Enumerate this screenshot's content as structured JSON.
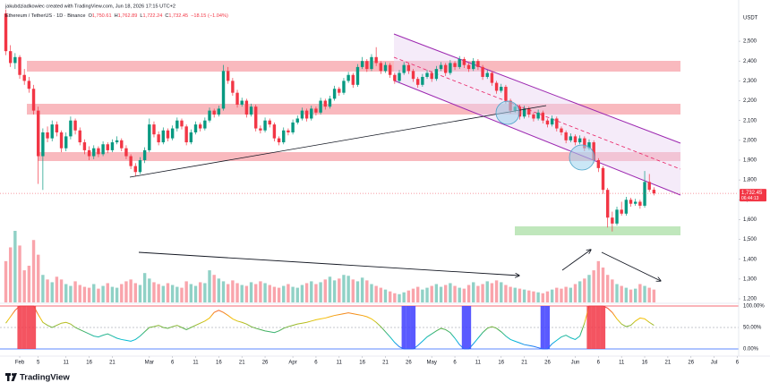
{
  "chart_data": {
    "type": "candlestick",
    "author_line": "jakubdziadkowiec created with TradingView.com, Jun 18, 2026 17:15 UTC+2",
    "symbol": "Ethereum / TetherUS · 1D · Binance",
    "ohlc_legend": [
      "O",
      "1,750.61",
      "H",
      "1,762.89",
      "L",
      "1,722.24",
      "C",
      "1,732.45",
      "−18.15 (−1.04%)"
    ],
    "currency": "USDT",
    "price_tag": "1,732.45",
    "countdown": "06:44:13",
    "brand": "TradingView",
    "up_color": "#089981",
    "down_color": "#f23645",
    "xlim": [
      -4.26,
      155.3
    ],
    "xticks": [
      {
        "value": 0,
        "label": "Feb"
      },
      {
        "value": 4,
        "label": "5"
      },
      {
        "value": 10,
        "label": "11"
      },
      {
        "value": 15,
        "label": "16"
      },
      {
        "value": 20,
        "label": "21"
      },
      {
        "value": 28,
        "label": "Mar"
      },
      {
        "value": 33,
        "label": "6"
      },
      {
        "value": 38,
        "label": "11"
      },
      {
        "value": 43,
        "label": "16"
      },
      {
        "value": 48,
        "label": "21"
      },
      {
        "value": 53,
        "label": "26"
      },
      {
        "value": 59,
        "label": "Apr"
      },
      {
        "value": 64,
        "label": "6"
      },
      {
        "value": 69,
        "label": "11"
      },
      {
        "value": 74,
        "label": "16"
      },
      {
        "value": 79,
        "label": "21"
      },
      {
        "value": 84,
        "label": "26"
      },
      {
        "value": 89,
        "label": "May"
      },
      {
        "value": 94,
        "label": "6"
      },
      {
        "value": 99,
        "label": "11"
      },
      {
        "value": 104,
        "label": "16"
      },
      {
        "value": 109,
        "label": "21"
      },
      {
        "value": 114,
        "label": "26"
      },
      {
        "value": 120,
        "label": "Jun"
      },
      {
        "value": 125,
        "label": "6"
      },
      {
        "value": 130,
        "label": "11"
      },
      {
        "value": 135,
        "label": "16"
      },
      {
        "value": 140,
        "label": "21"
      },
      {
        "value": 145,
        "label": "26"
      },
      {
        "value": 150,
        "label": "Jul"
      },
      {
        "value": 155,
        "label": "6"
      }
    ],
    "ylim": [
      1182,
      2672
    ],
    "yticks": [
      {
        "value": 1200,
        "label": "1,200"
      },
      {
        "value": 1300,
        "label": "1,300"
      },
      {
        "value": 1400,
        "label": "1,400"
      },
      {
        "value": 1500,
        "label": "1,500"
      },
      {
        "value": 1600,
        "label": "1,600"
      },
      {
        "value": 1700,
        "label": "1,700"
      },
      {
        "value": 1800,
        "label": "1,800"
      },
      {
        "value": 1900,
        "label": "1,900"
      },
      {
        "value": 2000,
        "label": "2,000"
      },
      {
        "value": 2100,
        "label": "2,100"
      },
      {
        "value": 2200,
        "label": "2,200"
      },
      {
        "value": 2300,
        "label": "2,300"
      },
      {
        "value": 2400,
        "label": "2,400"
      },
      {
        "value": 2500,
        "label": "2,500"
      }
    ],
    "x": [
      -3,
      -2,
      -1,
      0,
      1,
      2,
      3,
      4,
      5,
      6,
      7,
      8,
      9,
      10,
      11,
      12,
      13,
      14,
      15,
      16,
      17,
      18,
      19,
      20,
      21,
      22,
      23,
      24,
      25,
      26,
      27,
      28,
      29,
      30,
      31,
      32,
      33,
      34,
      35,
      36,
      37,
      38,
      39,
      40,
      41,
      42,
      43,
      44,
      45,
      46,
      47,
      48,
      49,
      50,
      51,
      52,
      53,
      54,
      55,
      56,
      57,
      58,
      59,
      60,
      61,
      62,
      63,
      64,
      65,
      66,
      67,
      68,
      69,
      70,
      71,
      72,
      73,
      74,
      75,
      76,
      77,
      78,
      79,
      80,
      81,
      82,
      83,
      84,
      85,
      86,
      87,
      88,
      89,
      90,
      91,
      92,
      93,
      94,
      95,
      96,
      97,
      98,
      99,
      100,
      101,
      102,
      103,
      104,
      105,
      106,
      107,
      108,
      109,
      110,
      111,
      112,
      113,
      114,
      115,
      116,
      117,
      118,
      119,
      120,
      121,
      122,
      123,
      124,
      125,
      126,
      127,
      128,
      129,
      130,
      131,
      132,
      133,
      134,
      135,
      136,
      137
    ],
    "ohlc": [
      [
        2640,
        2660,
        2430,
        2450
      ],
      [
        2450,
        2480,
        2370,
        2390
      ],
      [
        2390,
        2440,
        2360,
        2420
      ],
      [
        2420,
        2430,
        2310,
        2330
      ],
      [
        2330,
        2360,
        2280,
        2300
      ],
      [
        2300,
        2320,
        2240,
        2260
      ],
      [
        2260,
        2280,
        2130,
        2150
      ],
      [
        2150,
        2170,
        1780,
        1920
      ],
      [
        1920,
        2060,
        1750,
        2040
      ],
      [
        2040,
        2070,
        1990,
        2010
      ],
      [
        2010,
        2100,
        1995,
        2080
      ],
      [
        2080,
        2095,
        2020,
        2040
      ],
      [
        2040,
        2050,
        1940,
        1960
      ],
      [
        1960,
        2040,
        1945,
        2020
      ],
      [
        2020,
        2120,
        2005,
        2100
      ],
      [
        2100,
        2110,
        2030,
        2050
      ],
      [
        2050,
        2065,
        1975,
        1990
      ],
      [
        1990,
        2005,
        1930,
        1950
      ],
      [
        1950,
        1970,
        1900,
        1920
      ],
      [
        1920,
        1975,
        1905,
        1960
      ],
      [
        1960,
        1970,
        1915,
        1930
      ],
      [
        1930,
        1995,
        1920,
        1980
      ],
      [
        1980,
        1990,
        1935,
        1950
      ],
      [
        1950,
        2005,
        1940,
        1990
      ],
      [
        1990,
        2020,
        1980,
        2000
      ],
      [
        2000,
        2010,
        1945,
        1960
      ],
      [
        1960,
        1975,
        1905,
        1920
      ],
      [
        1920,
        1930,
        1855,
        1870
      ],
      [
        1870,
        1885,
        1820,
        1840
      ],
      [
        1840,
        1915,
        1830,
        1900
      ],
      [
        1900,
        1965,
        1885,
        1950
      ],
      [
        1950,
        2110,
        1940,
        2080
      ],
      [
        2080,
        2095,
        2015,
        2030
      ],
      [
        2030,
        2045,
        1975,
        1990
      ],
      [
        1990,
        2065,
        1980,
        2050
      ],
      [
        2050,
        2060,
        1995,
        2010
      ],
      [
        2010,
        2075,
        2000,
        2060
      ],
      [
        2060,
        2115,
        2045,
        2100
      ],
      [
        2100,
        2110,
        2055,
        2070
      ],
      [
        2070,
        2080,
        1975,
        1990
      ],
      [
        1990,
        2055,
        1980,
        2040
      ],
      [
        2040,
        2095,
        2030,
        2080
      ],
      [
        2080,
        2090,
        2045,
        2060
      ],
      [
        2060,
        2115,
        2050,
        2100
      ],
      [
        2100,
        2165,
        2090,
        2150
      ],
      [
        2150,
        2160,
        2115,
        2130
      ],
      [
        2130,
        2175,
        2120,
        2160
      ],
      [
        2160,
        2380,
        2150,
        2350
      ],
      [
        2350,
        2370,
        2285,
        2300
      ],
      [
        2300,
        2315,
        2225,
        2240
      ],
      [
        2240,
        2255,
        2165,
        2180
      ],
      [
        2180,
        2215,
        2170,
        2200
      ],
      [
        2200,
        2210,
        2115,
        2130
      ],
      [
        2130,
        2185,
        2120,
        2170
      ],
      [
        2170,
        2180,
        2045,
        2060
      ],
      [
        2060,
        2075,
        2035,
        2050
      ],
      [
        2050,
        2115,
        2040,
        2100
      ],
      [
        2100,
        2110,
        2065,
        2080
      ],
      [
        2080,
        2090,
        1995,
        2010
      ],
      [
        2010,
        2020,
        1975,
        1990
      ],
      [
        1990,
        2065,
        1980,
        2050
      ],
      [
        2050,
        2060,
        2025,
        2040
      ],
      [
        2040,
        2105,
        2030,
        2090
      ],
      [
        2090,
        2125,
        2080,
        2110
      ],
      [
        2110,
        2165,
        2100,
        2150
      ],
      [
        2150,
        2160,
        2095,
        2110
      ],
      [
        2110,
        2175,
        2100,
        2160
      ],
      [
        2160,
        2170,
        2125,
        2140
      ],
      [
        2140,
        2215,
        2130,
        2200
      ],
      [
        2200,
        2210,
        2155,
        2170
      ],
      [
        2170,
        2225,
        2160,
        2210
      ],
      [
        2210,
        2275,
        2200,
        2260
      ],
      [
        2260,
        2270,
        2225,
        2240
      ],
      [
        2240,
        2315,
        2230,
        2300
      ],
      [
        2300,
        2345,
        2290,
        2330
      ],
      [
        2330,
        2340,
        2265,
        2280
      ],
      [
        2280,
        2385,
        2270,
        2370
      ],
      [
        2370,
        2420,
        2360,
        2400
      ],
      [
        2400,
        2410,
        2345,
        2360
      ],
      [
        2360,
        2435,
        2350,
        2420
      ],
      [
        2420,
        2470,
        2375,
        2390
      ],
      [
        2390,
        2400,
        2335,
        2350
      ],
      [
        2350,
        2395,
        2340,
        2380
      ],
      [
        2380,
        2390,
        2315,
        2330
      ],
      [
        2330,
        2340,
        2285,
        2300
      ],
      [
        2300,
        2355,
        2290,
        2340
      ],
      [
        2340,
        2395,
        2330,
        2380
      ],
      [
        2380,
        2390,
        2335,
        2350
      ],
      [
        2350,
        2360,
        2295,
        2310
      ],
      [
        2310,
        2320,
        2265,
        2280
      ],
      [
        2280,
        2335,
        2270,
        2320
      ],
      [
        2320,
        2355,
        2310,
        2340
      ],
      [
        2340,
        2350,
        2295,
        2310
      ],
      [
        2310,
        2375,
        2300,
        2360
      ],
      [
        2360,
        2395,
        2350,
        2380
      ],
      [
        2380,
        2390,
        2325,
        2340
      ],
      [
        2340,
        2405,
        2330,
        2390
      ],
      [
        2390,
        2400,
        2355,
        2370
      ],
      [
        2370,
        2425,
        2360,
        2410
      ],
      [
        2410,
        2420,
        2365,
        2380
      ],
      [
        2380,
        2390,
        2345,
        2360
      ],
      [
        2360,
        2415,
        2350,
        2400
      ],
      [
        2400,
        2410,
        2355,
        2370
      ],
      [
        2370,
        2380,
        2305,
        2320
      ],
      [
        2320,
        2355,
        2310,
        2340
      ],
      [
        2340,
        2350,
        2275,
        2290
      ],
      [
        2290,
        2300,
        2235,
        2250
      ],
      [
        2250,
        2285,
        2240,
        2270
      ],
      [
        2270,
        2280,
        2185,
        2200
      ],
      [
        2200,
        2210,
        2135,
        2150
      ],
      [
        2150,
        2185,
        2140,
        2170
      ],
      [
        2170,
        2180,
        2105,
        2120
      ],
      [
        2120,
        2175,
        2110,
        2160
      ],
      [
        2160,
        2170,
        2115,
        2130
      ],
      [
        2130,
        2140,
        2095,
        2110
      ],
      [
        2110,
        2155,
        2100,
        2140
      ],
      [
        2140,
        2150,
        2085,
        2100
      ],
      [
        2100,
        2110,
        2065,
        2080
      ],
      [
        2080,
        2125,
        2070,
        2110
      ],
      [
        2110,
        2120,
        2045,
        2060
      ],
      [
        2060,
        2070,
        2025,
        2040
      ],
      [
        2040,
        2050,
        1985,
        2000
      ],
      [
        2000,
        2035,
        1990,
        2020
      ],
      [
        2020,
        2030,
        1975,
        1990
      ],
      [
        1990,
        2025,
        1980,
        2010
      ],
      [
        2010,
        2020,
        1945,
        1960
      ],
      [
        1960,
        2005,
        1950,
        1990
      ],
      [
        1990,
        2000,
        1885,
        1900
      ],
      [
        1900,
        1910,
        1840,
        1860
      ],
      [
        1860,
        1870,
        1730,
        1750
      ],
      [
        1750,
        1760,
        1560,
        1610
      ],
      [
        1610,
        1640,
        1540,
        1580
      ],
      [
        1580,
        1665,
        1570,
        1650
      ],
      [
        1650,
        1690,
        1620,
        1630
      ],
      [
        1630,
        1715,
        1620,
        1700
      ],
      [
        1700,
        1710,
        1665,
        1680
      ],
      [
        1680,
        1705,
        1670,
        1690
      ],
      [
        1690,
        1700,
        1655,
        1670
      ],
      [
        1670,
        1845,
        1660,
        1790
      ],
      [
        1790,
        1830,
        1740,
        1750.61
      ],
      [
        1750.61,
        1762.89,
        1722.24,
        1732.45
      ]
    ],
    "volume": [
      450,
      600,
      780,
      620,
      350,
      400,
      680,
      520,
      300,
      250,
      220,
      280,
      250,
      200,
      180,
      230,
      190,
      170,
      160,
      200,
      150,
      180,
      210,
      170,
      160,
      200,
      230,
      250,
      210,
      190,
      320,
      260,
      220,
      200,
      180,
      210,
      190,
      170,
      160,
      230,
      200,
      180,
      220,
      210,
      350,
      300,
      260,
      230,
      200,
      240,
      210,
      190,
      180,
      220,
      200,
      230,
      210,
      190,
      170,
      160,
      180,
      200,
      170,
      160,
      190,
      210,
      230,
      200,
      220,
      250,
      280,
      240,
      260,
      300,
      290,
      250,
      230,
      270,
      240,
      200,
      180,
      160,
      140,
      120,
      100,
      90,
      110,
      130,
      150,
      170,
      140,
      160,
      180,
      200,
      170,
      190,
      210,
      180,
      160,
      150,
      190,
      220,
      180,
      200,
      230,
      210,
      240,
      220,
      190,
      170,
      160,
      150,
      140,
      130,
      120,
      110,
      100,
      120,
      140,
      160,
      150,
      170,
      160,
      200,
      230,
      260,
      300,
      350,
      450,
      380,
      300,
      250,
      200,
      180,
      160,
      140,
      150,
      200,
      180,
      160,
      140
    ],
    "indicator": {
      "ylim": [
        0,
        100
      ],
      "yticks": [
        {
          "value": 0,
          "label": "0.00%"
        },
        {
          "value": 50,
          "label": "50.00%"
        },
        {
          "value": 100,
          "label": "100.00%"
        }
      ],
      "values": [
        60,
        75,
        90,
        100,
        100,
        100,
        100,
        80,
        62,
        55,
        50,
        55,
        60,
        62,
        58,
        50,
        45,
        40,
        35,
        30,
        28,
        32,
        35,
        30,
        25,
        22,
        20,
        18,
        22,
        30,
        40,
        50,
        52,
        55,
        50,
        48,
        52,
        55,
        50,
        45,
        50,
        55,
        60,
        65,
        72,
        85,
        90,
        85,
        78,
        70,
        65,
        62,
        58,
        52,
        48,
        45,
        42,
        40,
        38,
        42,
        48,
        52,
        55,
        58,
        60,
        62,
        65,
        68,
        70,
        72,
        75,
        78,
        80,
        82,
        84,
        82,
        80,
        78,
        75,
        70,
        62,
        52,
        40,
        28,
        15,
        5,
        0,
        0,
        0,
        8,
        18,
        28,
        35,
        42,
        48,
        45,
        38,
        25,
        10,
        0,
        0,
        12,
        25,
        38,
        48,
        52,
        48,
        40,
        30,
        22,
        18,
        14,
        10,
        8,
        6,
        3,
        0,
        0,
        12,
        20,
        28,
        32,
        26,
        22,
        30,
        60,
        100,
        100,
        100,
        100,
        95,
        85,
        70,
        58,
        52,
        55,
        65,
        72,
        70,
        62,
        55
      ]
    }
  }
}
